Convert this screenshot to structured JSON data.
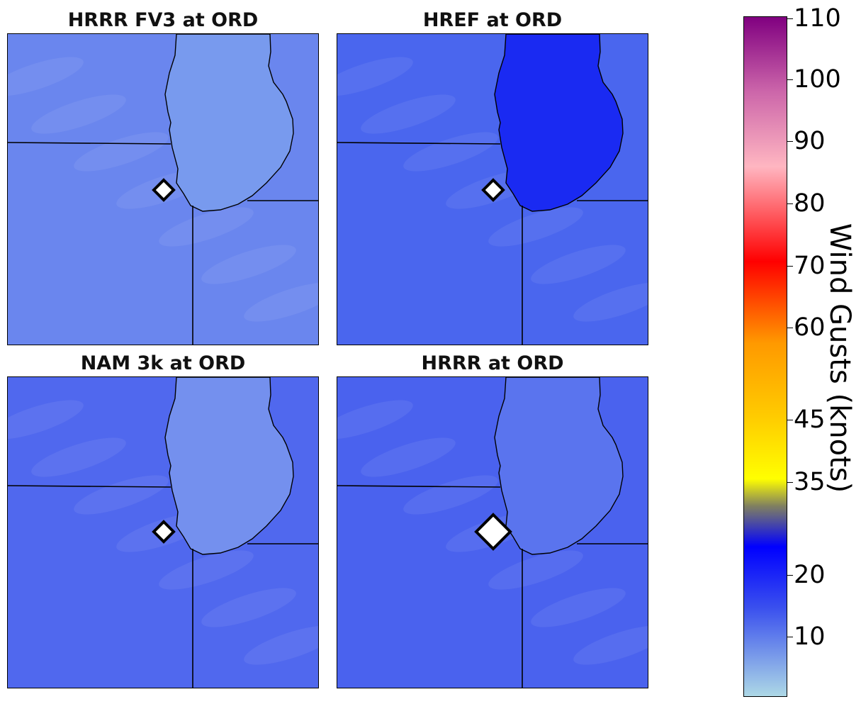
{
  "panels": [
    {
      "title": "HRRR FV3 at ORD",
      "base_color": "#6a86ee",
      "lake_color": "#789aee"
    },
    {
      "title": "HREF at ORD",
      "base_color": "#4a66ee",
      "lake_color": "#1a2af2"
    },
    {
      "title": "NAM 3k at ORD",
      "base_color": "#5068ee",
      "lake_color": "#7490ee"
    },
    {
      "title": "HRRR at ORD",
      "base_color": "#4a62ee",
      "lake_color": "#5a74ee"
    }
  ],
  "colorbar": {
    "label": "Wind Gusts (knots)",
    "ticks": [
      "10",
      "20",
      "35",
      "45",
      "60",
      "70",
      "80",
      "90",
      "100",
      "110"
    ],
    "stops": [
      {
        "color": "#add8e6",
        "pos": 0
      },
      {
        "color": "#3a50ee",
        "pos": 0.13
      },
      {
        "color": "#0000ff",
        "pos": 0.22
      },
      {
        "color": "#808060",
        "pos": 0.28
      },
      {
        "color": "#ffff00",
        "pos": 0.32
      },
      {
        "color": "#ffcc00",
        "pos": 0.41
      },
      {
        "color": "#ff9900",
        "pos": 0.52
      },
      {
        "color": "#ff0000",
        "pos": 0.64
      },
      {
        "color": "#ffb6c1",
        "pos": 0.78
      },
      {
        "color": "#cc66aa",
        "pos": 0.89
      },
      {
        "color": "#800080",
        "pos": 1.0
      }
    ]
  },
  "marker": "diamond-icon"
}
